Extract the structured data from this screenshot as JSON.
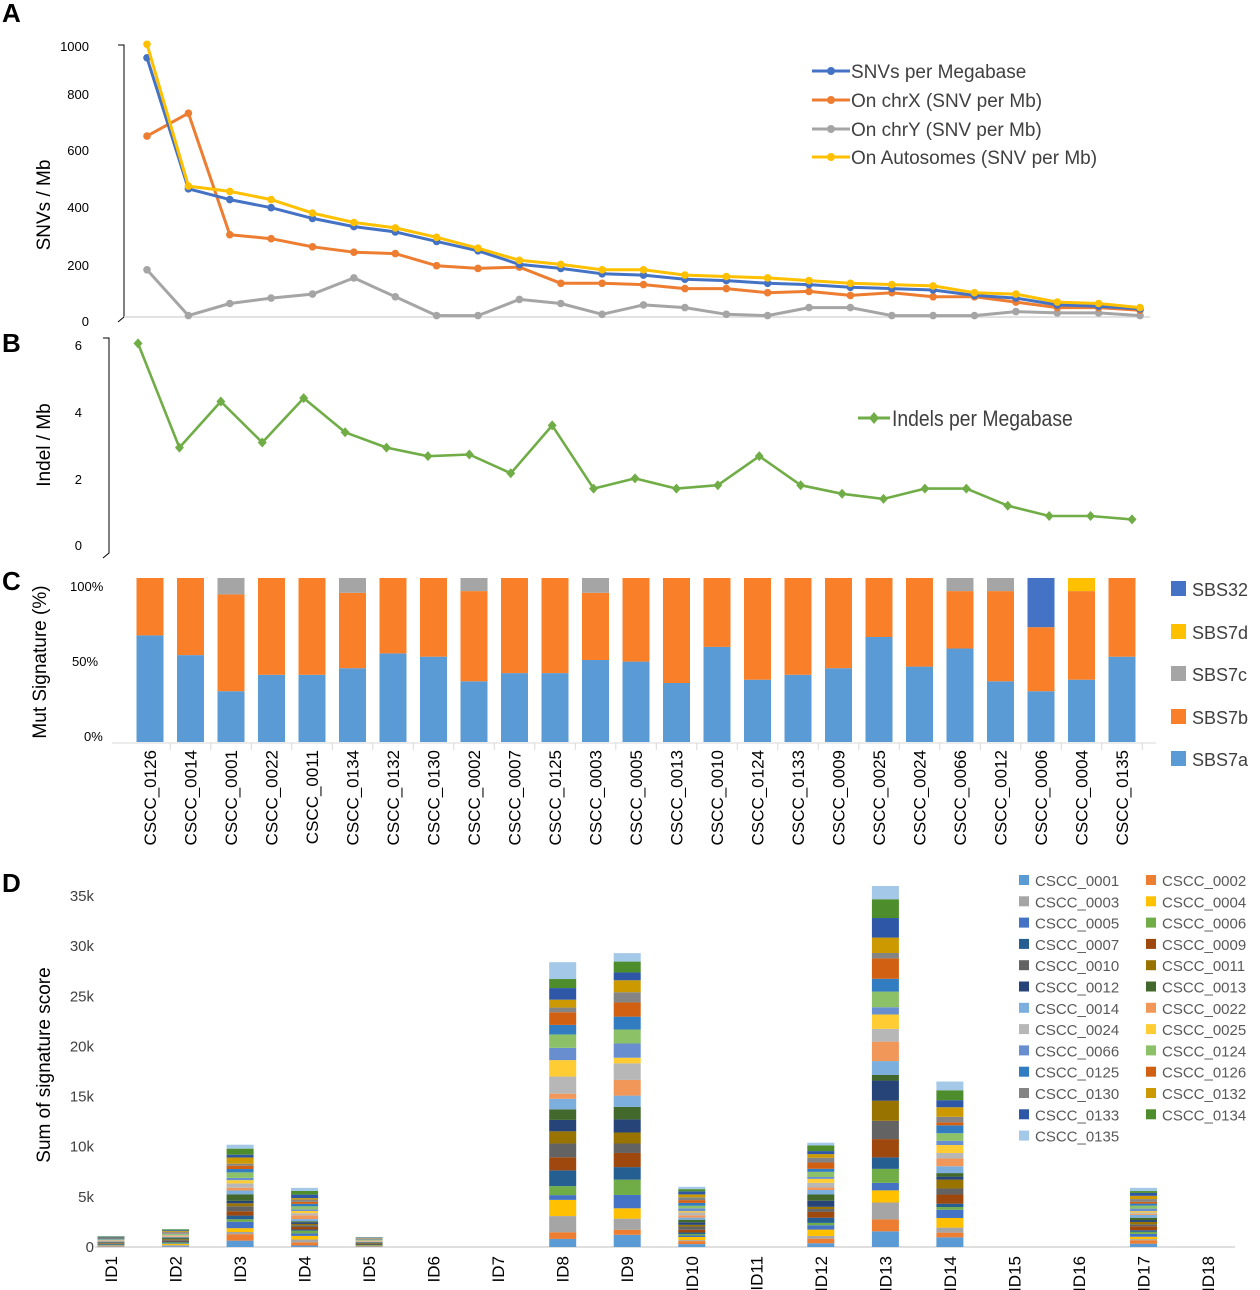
{
  "panels": {
    "a": "A",
    "b": "B",
    "c": "C",
    "d": "D"
  },
  "colors": {
    "snv": "#4472C4",
    "chrx": "#ED7D31",
    "chry": "#A5A5A5",
    "auto": "#FFC000",
    "indel": "#70AD47",
    "sbs7a": "#5B9BD5",
    "sbs7b": "#F98028",
    "sbs7c": "#A5A5A5",
    "sbs7d": "#FFC000",
    "sbs32": "#4472C4",
    "d_palette": [
      "#5B9BD5",
      "#ED7D31",
      "#A5A5A5",
      "#FFC000",
      "#4472C4",
      "#70AD47",
      "#255E91",
      "#9E480E",
      "#636363",
      "#997300",
      "#264478",
      "#43682B",
      "#7CAFDD",
      "#F1975A",
      "#B7B7B7",
      "#FFCD33",
      "#698ED0",
      "#8CC168",
      "#327DC2",
      "#D26012",
      "#848484",
      "#CC9A00",
      "#2E58A7",
      "#4E8D2C",
      "#A4C8E8"
    ]
  },
  "chart_data": [
    {
      "panel": "A",
      "type": "line",
      "ylabel": "SNVs / Mb",
      "ylim": [
        0,
        1000
      ],
      "yticks": [
        "0",
        "200",
        "400",
        "600",
        "800",
        "1000"
      ],
      "categories": [
        "CSCC_0126",
        "CSCC_0014",
        "CSCC_0001",
        "CSCC_0022",
        "CSCC_0011",
        "CSCC_0134",
        "CSCC_0132",
        "CSCC_0130",
        "CSCC_0002",
        "CSCC_0007",
        "CSCC_0125",
        "CSCC_0003",
        "CSCC_0005",
        "CSCC_0013",
        "CSCC_0010",
        "CSCC_0124",
        "CSCC_0133",
        "CSCC_0009",
        "CSCC_0025",
        "CSCC_0024",
        "CSCC_0066",
        "CSCC_0012",
        "CSCC_0006",
        "CSCC_0004",
        "CSCC_0135"
      ],
      "legend_position": "top-right",
      "series": [
        {
          "name": "SNVs per Megabase",
          "color_key": "snv",
          "values": [
            960,
            475,
            435,
            405,
            365,
            335,
            315,
            280,
            245,
            195,
            180,
            160,
            155,
            140,
            135,
            125,
            120,
            110,
            105,
            100,
            80,
            70,
            45,
            40,
            30
          ]
        },
        {
          "name": "On chrX (SNV per Mb)",
          "color_key": "chrx",
          "values": [
            670,
            755,
            305,
            290,
            260,
            240,
            235,
            190,
            180,
            185,
            125,
            125,
            120,
            105,
            105,
            90,
            95,
            80,
            90,
            75,
            75,
            55,
            35,
            35,
            25
          ]
        },
        {
          "name": "On chrY (SNV per Mb)",
          "color_key": "chry",
          "values": [
            175,
            5,
            50,
            70,
            85,
            145,
            75,
            5,
            5,
            65,
            50,
            10,
            45,
            35,
            10,
            5,
            35,
            35,
            5,
            5,
            5,
            20,
            15,
            15,
            5
          ]
        },
        {
          "name": "On Autosomes (SNV per Mb)",
          "color_key": "auto",
          "values": [
            1010,
            485,
            465,
            435,
            385,
            350,
            330,
            295,
            255,
            210,
            195,
            175,
            175,
            155,
            150,
            145,
            135,
            125,
            120,
            115,
            90,
            85,
            55,
            50,
            35
          ]
        }
      ]
    },
    {
      "panel": "B",
      "type": "line",
      "ylabel": "Indel / Mb",
      "ylim": [
        0,
        6
      ],
      "yticks": [
        "0",
        "2",
        "4",
        "6"
      ],
      "categories": [
        "CSCC_0126",
        "CSCC_0014",
        "CSCC_0001",
        "CSCC_0022",
        "CSCC_0011",
        "CSCC_0134",
        "CSCC_0132",
        "CSCC_0130",
        "CSCC_0002",
        "CSCC_0007",
        "CSCC_0125",
        "CSCC_0003",
        "CSCC_0005",
        "CSCC_0013",
        "CSCC_0010",
        "CSCC_0124",
        "CSCC_0133",
        "CSCC_0009",
        "CSCC_0025",
        "CSCC_0024",
        "CSCC_0066",
        "CSCC_0012",
        "CSCC_0006",
        "CSCC_0004",
        "CSCC_0135"
      ],
      "legend_position": "right",
      "series": [
        {
          "name": "Indels per Megabase",
          "color_key": "indel",
          "values": [
            5.9,
            2.85,
            4.2,
            3.0,
            4.3,
            3.3,
            2.85,
            2.6,
            2.65,
            2.1,
            3.5,
            1.65,
            1.95,
            1.65,
            1.75,
            2.6,
            1.75,
            1.5,
            1.35,
            1.65,
            1.65,
            1.15,
            0.85,
            0.85,
            0.75
          ]
        }
      ]
    },
    {
      "panel": "C",
      "type": "bar",
      "stacked": true,
      "ylabel": "Mut Signature (%)",
      "ylim": [
        0,
        100
      ],
      "yticks": [
        "0%",
        "50%",
        "100%"
      ],
      "categories": [
        "CSCC_0126",
        "CSCC_0014",
        "CSCC_0001",
        "CSCC_0022",
        "CSCC_0011",
        "CSCC_0134",
        "CSCC_0132",
        "CSCC_0130",
        "CSCC_0002",
        "CSCC_0007",
        "CSCC_0125",
        "CSCC_0003",
        "CSCC_0005",
        "CSCC_0013",
        "CSCC_0010",
        "CSCC_0124",
        "CSCC_0133",
        "CSCC_0009",
        "CSCC_0025",
        "CSCC_0024",
        "CSCC_0066",
        "CSCC_0012",
        "CSCC_0006",
        "CSCC_0004",
        "CSCC_0135"
      ],
      "legend_position": "right",
      "legend": [
        "SBS32",
        "SBS7d",
        "SBS7c",
        "SBS7b",
        "SBS7a"
      ],
      "series": [
        {
          "name": "SBS7a",
          "color_key": "sbs7a",
          "values": [
            65,
            53,
            31,
            41,
            41,
            45,
            54,
            52,
            37,
            42,
            42,
            50,
            49,
            36,
            58,
            38,
            41,
            45,
            64,
            46,
            57,
            37,
            31,
            38,
            52
          ]
        },
        {
          "name": "SBS7b",
          "color_key": "sbs7b",
          "values": [
            35,
            47,
            59,
            59,
            59,
            46,
            46,
            48,
            55,
            58,
            58,
            41,
            51,
            64,
            42,
            62,
            59,
            55,
            36,
            54,
            35,
            55,
            39,
            54,
            48
          ]
        },
        {
          "name": "SBS7c",
          "color_key": "sbs7c",
          "values": [
            0,
            0,
            10,
            0,
            0,
            9,
            0,
            0,
            8,
            0,
            0,
            9,
            0,
            0,
            0,
            0,
            0,
            0,
            0,
            0,
            8,
            8,
            0,
            0,
            0
          ]
        },
        {
          "name": "SBS7d",
          "color_key": "sbs7d",
          "values": [
            0,
            0,
            0,
            0,
            0,
            0,
            0,
            0,
            0,
            0,
            0,
            0,
            0,
            0,
            0,
            0,
            0,
            0,
            0,
            0,
            0,
            0,
            0,
            8,
            0
          ]
        },
        {
          "name": "SBS32",
          "color_key": "sbs32",
          "values": [
            0,
            0,
            0,
            0,
            0,
            0,
            0,
            0,
            0,
            0,
            0,
            0,
            0,
            0,
            0,
            0,
            0,
            0,
            0,
            0,
            0,
            0,
            30,
            0,
            0
          ]
        }
      ]
    },
    {
      "panel": "D",
      "type": "bar",
      "stacked": true,
      "ylabel": "Sum  of signature score",
      "ylim": [
        0,
        35000
      ],
      "yticks": [
        "0",
        "5k",
        "10k",
        "15k",
        "20k",
        "25k",
        "30k",
        "35k"
      ],
      "categories": [
        "ID1",
        "ID2",
        "ID3",
        "ID4",
        "ID5",
        "ID6",
        "ID7",
        "ID8",
        "ID9",
        "ID10",
        "ID11",
        "ID12",
        "ID13",
        "ID14",
        "ID15",
        "ID16",
        "ID17",
        "ID18"
      ],
      "totals": [
        1100,
        1800,
        10200,
        5900,
        1000,
        0,
        0,
        28400,
        29300,
        6000,
        0,
        10400,
        36000,
        16500,
        0,
        0,
        5900,
        0
      ],
      "legend_position": "top-right",
      "series_names": [
        "CSCC_0001",
        "CSCC_0002",
        "CSCC_0003",
        "CSCC_0004",
        "CSCC_0005",
        "CSCC_0006",
        "CSCC_0007",
        "CSCC_0009",
        "CSCC_0010",
        "CSCC_0011",
        "CSCC_0012",
        "CSCC_0013",
        "CSCC_0014",
        "CSCC_0022",
        "CSCC_0024",
        "CSCC_0025",
        "CSCC_0066",
        "CSCC_0124",
        "CSCC_0125",
        "CSCC_0126",
        "CSCC_0130",
        "CSCC_0132",
        "CSCC_0133",
        "CSCC_0134",
        "CSCC_0135"
      ]
    }
  ]
}
